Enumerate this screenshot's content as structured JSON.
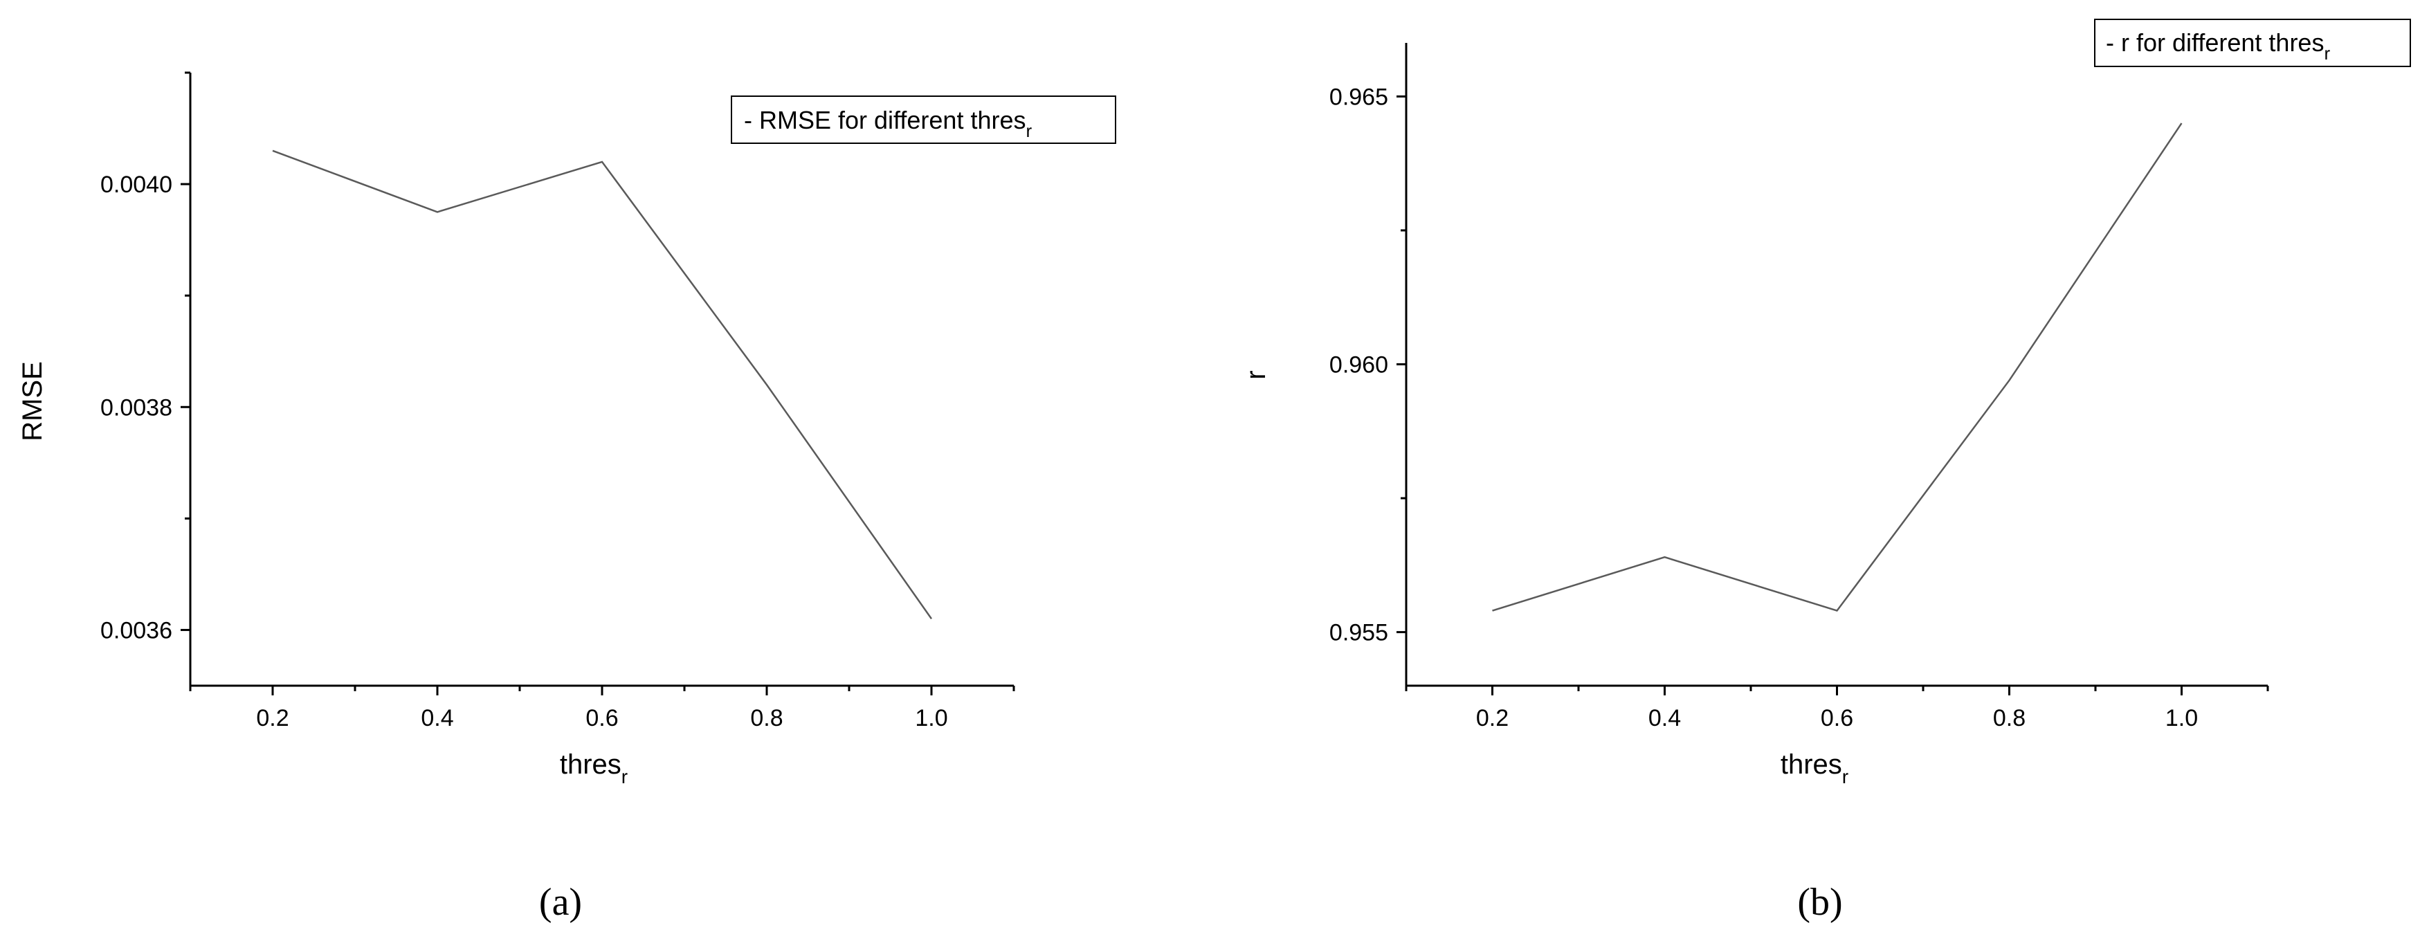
{
  "chart_data": [
    {
      "panel": "a",
      "caption": "(a)",
      "type": "line",
      "x": [
        0.2,
        0.4,
        0.6,
        0.8,
        1.0
      ],
      "series": [
        {
          "name": "- RMSE for different thres",
          "name_subscript": "r",
          "values": [
            0.00403,
            0.003975,
            0.00402,
            0.00382,
            0.00361
          ]
        }
      ],
      "xlabel": "thres",
      "xlabel_subscript": "r",
      "ylabel": "RMSE",
      "xlim": [
        0.1,
        1.1
      ],
      "ylim": [
        0.00355,
        0.0041
      ],
      "xticks": [
        "0.2",
        "0.4",
        "0.6",
        "0.8",
        "1.0"
      ],
      "yticks": [
        "0.0036",
        "0.0038",
        "0.0040"
      ],
      "ytick_values": [
        0.0036,
        0.0038,
        0.004
      ],
      "legend_position": "top-right",
      "grid": false
    },
    {
      "panel": "b",
      "caption": "(b)",
      "type": "line",
      "x": [
        0.2,
        0.4,
        0.6,
        0.8,
        1.0
      ],
      "series": [
        {
          "name": "- r for different thres",
          "name_subscript": "r",
          "values": [
            0.9554,
            0.9564,
            0.9554,
            0.9597,
            0.9645
          ]
        }
      ],
      "xlabel": "thres",
      "xlabel_subscript": "r",
      "ylabel": "r",
      "xlim": [
        0.1,
        1.1
      ],
      "ylim": [
        0.954,
        0.966
      ],
      "xticks": [
        "0.2",
        "0.4",
        "0.6",
        "0.8",
        "1.0"
      ],
      "yticks": [
        "0.955",
        "0.960",
        "0.965"
      ],
      "ytick_values": [
        0.955,
        0.96,
        0.965
      ],
      "legend_position": "top-right",
      "grid": false
    }
  ]
}
